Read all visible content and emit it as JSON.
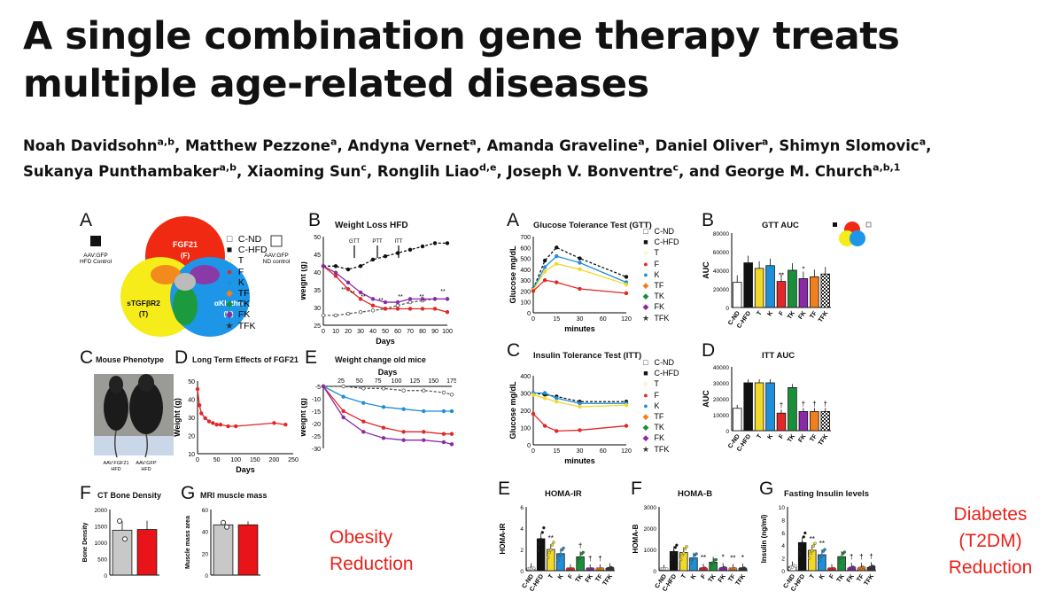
{
  "title": "A single combination gene therapy treats multiple age-related diseases",
  "authors": [
    {
      "name": "Noah Davidsohn",
      "aff": "a,b"
    },
    {
      "name": "Matthew Pezzone",
      "aff": "a"
    },
    {
      "name": "Andyna Vernet",
      "aff": "a"
    },
    {
      "name": "Amanda Graveline",
      "aff": "a"
    },
    {
      "name": "Daniel Oliver",
      "aff": "a"
    },
    {
      "name": "Shimyn Slomovic",
      "aff": "a"
    },
    {
      "name": "Sukanya Punthambaker",
      "aff": "a,b"
    },
    {
      "name": "Xiaoming Sun",
      "aff": "c"
    },
    {
      "name": "Ronglih Liao",
      "aff": "d,e"
    },
    {
      "name": "Joseph V. Bonventre",
      "aff": "c"
    },
    {
      "name": "George M. Church",
      "aff": "a,b,1"
    }
  ],
  "authors_joiner": ", and ",
  "venn": {
    "label": "A",
    "circles": [
      {
        "name": "FGF21",
        "sub": "(F)",
        "color": "#f02a12"
      },
      {
        "name": "sTGFβR2",
        "sub": "(T)",
        "color": "#f5ec1a"
      },
      {
        "name": "αKlotho",
        "sub": "(K)",
        "color": "#1e96e8"
      }
    ],
    "left_note": [
      "AAV:GFP",
      "HFD Control"
    ],
    "right_note": [
      "AAV:GFP",
      "ND control"
    ]
  },
  "legend_groups": [
    "C-ND",
    "C-HFD",
    "T",
    "F",
    "K",
    "TF",
    "TK",
    "FK",
    "TFK"
  ],
  "colors": {
    "C-ND": "#ffffff",
    "C-HFD": "#111111",
    "T": "#f1d92a",
    "F": "#e32626",
    "K": "#1e8fd8",
    "TF": "#f07f1e",
    "TK": "#1a8f3a",
    "FK": "#8a2ba6",
    "TFK": "#333333"
  },
  "weight_loss": {
    "label": "B",
    "title": "Weight Loss HFD",
    "ylabel": "Weight (g)",
    "xlabel": "Days",
    "yticks": [
      "50",
      "45",
      "40",
      "35",
      "30",
      "25"
    ],
    "xticks": [
      "0",
      "10",
      "20",
      "30",
      "40",
      "50",
      "60",
      "70",
      "80",
      "90",
      "100"
    ],
    "arrows": [
      "GTT",
      "PTT",
      "ITT"
    ],
    "stars": [
      "**",
      "**",
      "**",
      "**",
      "**",
      "**",
      "**"
    ],
    "chart_data": {
      "type": "line",
      "x": [
        0,
        10,
        20,
        30,
        40,
        50,
        60,
        70,
        80,
        90,
        100
      ],
      "series": [
        {
          "name": "C-ND",
          "values": [
            28,
            28,
            28.5,
            29,
            29.5,
            30,
            31,
            32,
            32.5,
            33,
            33
          ]
        },
        {
          "name": "C-HFD",
          "values": [
            43,
            43,
            42,
            43,
            45,
            46,
            47,
            48,
            49,
            50,
            50
          ]
        },
        {
          "name": "F",
          "values": [
            43,
            40,
            36,
            33,
            31,
            30,
            30,
            30,
            30,
            30,
            29
          ]
        },
        {
          "name": "FK",
          "values": [
            43,
            41,
            38,
            35,
            33,
            32,
            32,
            33,
            33,
            33,
            33
          ]
        }
      ],
      "ylim": [
        25,
        52
      ]
    }
  },
  "mouse_phenotype": {
    "label": "C",
    "title": "Mouse Phenotype",
    "captions": [
      "AAV:FGF21\nHFD",
      "AAV:GFP\nHFD"
    ]
  },
  "long_term": {
    "label": "D",
    "title": "Long Term Effects of FGF21",
    "ylabel": "Weight (g)",
    "xlabel": "Days",
    "yticks": [
      "50",
      "40",
      "30",
      "20",
      "10"
    ],
    "xticks": [
      "0",
      "50",
      "100",
      "150",
      "200",
      "250"
    ],
    "chart_data": {
      "type": "line",
      "x": [
        0,
        5,
        10,
        20,
        30,
        40,
        50,
        60,
        80,
        100,
        200,
        230
      ],
      "values": [
        50,
        40,
        35,
        32,
        30,
        29,
        28,
        28,
        27,
        27,
        29,
        28
      ],
      "ylim": [
        10,
        55
      ],
      "xlim": [
        0,
        250
      ]
    }
  },
  "weight_change": {
    "label": "E",
    "title": "Weight change old mice",
    "ylabel": "Weight (g)",
    "xlabel": "Days",
    "xticks": [
      "25",
      "50",
      "75",
      "100",
      "125",
      "150",
      "175"
    ],
    "yticks": [
      "-5",
      "-10",
      "-15",
      "-20",
      "-25",
      "-30"
    ],
    "chart_data": {
      "type": "line",
      "x": [
        0,
        25,
        50,
        75,
        100,
        125,
        150,
        160
      ],
      "series": [
        {
          "name": "C-ND",
          "values": [
            0,
            0,
            -1,
            -1,
            -2,
            -2,
            -3,
            -4
          ]
        },
        {
          "name": "K",
          "values": [
            0,
            -5,
            -8,
            -10,
            -11,
            -12,
            -12,
            -12
          ]
        },
        {
          "name": "F",
          "values": [
            0,
            -12,
            -17,
            -20,
            -22,
            -22,
            -23,
            -23
          ]
        },
        {
          "name": "FK",
          "values": [
            0,
            -15,
            -22,
            -25,
            -26,
            -26,
            -27,
            -28
          ]
        }
      ],
      "ylim": [
        -30,
        0
      ]
    }
  },
  "ct_bone": {
    "label": "F",
    "title": "CT Bone Density",
    "ylabel": "Bone Density",
    "yticks": [
      "2000",
      "1500",
      "1000",
      "500",
      "0"
    ],
    "chart_data": {
      "type": "bar",
      "categories": [
        "AAV:GFP",
        "AAV:FGF21"
      ],
      "values": [
        1370,
        1390
      ],
      "ylim": [
        0,
        2000
      ]
    }
  },
  "mri_muscle": {
    "label": "G",
    "title": "MRI muscle mass",
    "ylabel": "Muscle mass area",
    "yticks": [
      "60",
      "40",
      "20",
      "0"
    ],
    "chart_data": {
      "type": "bar",
      "categories": [
        "AAV:GFP",
        "AAV:FGF21"
      ],
      "values": [
        46,
        46
      ],
      "ylim": [
        0,
        60
      ]
    }
  },
  "obesity_note": [
    "Obesity",
    "Reduction"
  ],
  "gtt": {
    "label": "A",
    "title": "Glucose Tolerance Test (GTT)",
    "ylabel": "Glucose mg/dL",
    "xlabel": "minutes",
    "yticks": [
      "700",
      "600",
      "500",
      "400",
      "300",
      "200",
      "100",
      "0"
    ],
    "xticks": [
      "0",
      "15",
      "30",
      "60",
      "120"
    ],
    "chart_data": {
      "type": "line",
      "x": [
        0,
        15,
        30,
        60,
        120
      ],
      "series": [
        {
          "name": "C-HFD",
          "values": [
            220,
            480,
            600,
            500,
            330
          ]
        },
        {
          "name": "K",
          "values": [
            220,
            420,
            520,
            460,
            280
          ]
        },
        {
          "name": "T",
          "values": [
            210,
            380,
            450,
            400,
            260
          ]
        },
        {
          "name": "F",
          "values": [
            200,
            300,
            280,
            220,
            180
          ]
        }
      ],
      "ylim": [
        0,
        700
      ]
    }
  },
  "gtt_auc": {
    "label": "B",
    "title": "GTT AUC",
    "ylabel": "AUC",
    "yticks": [
      "80000",
      "60000",
      "40000",
      "20000",
      "0"
    ],
    "chart_data": {
      "type": "bar",
      "categories": [
        "C-ND",
        "C-HFD",
        "T",
        "K",
        "F",
        "TK",
        "FK",
        "TF",
        "TFK"
      ],
      "values": [
        27000,
        48000,
        42000,
        45000,
        28000,
        40000,
        31000,
        33000,
        36000
      ],
      "ylim": [
        0,
        80000
      ]
    },
    "stars": [
      "**",
      "*"
    ]
  },
  "itt": {
    "label": "C",
    "title": "Insulin Tolerance Test (ITT)",
    "ylabel": "Glucose mg/dL",
    "xlabel": "minutes",
    "yticks": [
      "400",
      "300",
      "200",
      "100",
      "0"
    ],
    "xticks": [
      "0",
      "15",
      "30",
      "60",
      "120"
    ],
    "chart_data": {
      "type": "line",
      "x": [
        0,
        15,
        30,
        60,
        120
      ],
      "series": [
        {
          "name": "C-HFD",
          "values": [
            300,
            290,
            280,
            250,
            250
          ]
        },
        {
          "name": "K",
          "values": [
            300,
            300,
            270,
            240,
            240
          ]
        },
        {
          "name": "T",
          "values": [
            290,
            270,
            250,
            220,
            230
          ]
        },
        {
          "name": "F",
          "values": [
            180,
            110,
            80,
            85,
            110
          ]
        }
      ],
      "ylim": [
        0,
        400
      ]
    }
  },
  "itt_auc": {
    "label": "D",
    "title": "ITT AUC",
    "ylabel": "AUC",
    "yticks": [
      "40000",
      "30000",
      "20000",
      "10000",
      "0"
    ],
    "chart_data": {
      "type": "bar",
      "categories": [
        "C-ND",
        "C-HFD",
        "T",
        "K",
        "F",
        "TK",
        "FK",
        "TF",
        "TFK"
      ],
      "values": [
        14000,
        30000,
        30000,
        30000,
        11000,
        27000,
        12000,
        12000,
        12000
      ],
      "ylim": [
        0,
        40000
      ]
    },
    "marks": [
      "†",
      "†",
      "†",
      "†"
    ]
  },
  "homa_ir": {
    "label": "E",
    "title": "HOMA-IR",
    "ylabel": "HOMA-IR",
    "yticks": [
      "6",
      "4",
      "2",
      "0"
    ],
    "chart_data": {
      "type": "bar",
      "categories": [
        "C-ND",
        "C-HFD",
        "T",
        "K",
        "F",
        "TK",
        "FK",
        "TF",
        "TFK"
      ],
      "values": [
        0.2,
        3.0,
        2.0,
        1.6,
        0.1,
        1.3,
        0.1,
        0.1,
        0.2
      ],
      "ylim": [
        0,
        6
      ]
    },
    "marks": [
      "**",
      "†",
      "†",
      "†"
    ]
  },
  "homa_b": {
    "label": "F",
    "title": "HOMA-B",
    "ylabel": "HOMA-B",
    "yticks": [
      "3000",
      "2000",
      "1000",
      "0"
    ],
    "chart_data": {
      "type": "bar",
      "categories": [
        "C-ND",
        "C-HFD",
        "T",
        "K",
        "F",
        "TK",
        "FK",
        "TF",
        "TFK"
      ],
      "values": [
        20,
        900,
        850,
        600,
        80,
        400,
        100,
        60,
        80
      ],
      "ylim": [
        0,
        3000
      ]
    },
    "marks": [
      "**",
      "*",
      "**",
      "*"
    ]
  },
  "fasting_insulin": {
    "label": "G",
    "title": "Fasting Insulin levels",
    "ylabel": "Insulin (ng/ml)",
    "yticks": [
      "10",
      "8",
      "6",
      "4",
      "2",
      "0"
    ],
    "chart_data": {
      "type": "bar",
      "categories": [
        "C-ND",
        "C-HFD",
        "T",
        "K",
        "F",
        "TK",
        "FK",
        "TF",
        "TFK"
      ],
      "values": [
        0.6,
        4.4,
        3.2,
        2.5,
        0.2,
        2.2,
        0.4,
        0.4,
        0.5
      ],
      "ylim": [
        0,
        10
      ]
    },
    "marks": [
      "**",
      "**",
      "†",
      "†",
      "†"
    ]
  },
  "diabetes_note": [
    "Diabetes",
    "(T2DM)",
    "Reduction"
  ]
}
